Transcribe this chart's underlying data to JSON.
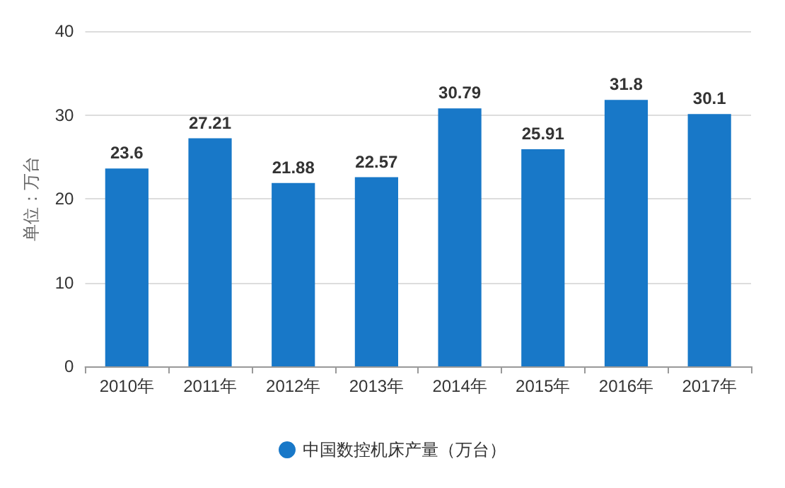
{
  "chart_data": {
    "type": "bar",
    "ylabel": "单位：万台",
    "categories": [
      "2010年",
      "2011年",
      "2012年",
      "2013年",
      "2014年",
      "2015年",
      "2016年",
      "2017年"
    ],
    "series": [
      {
        "name": "中国数控机床产量（万台）",
        "color": "#1878c8",
        "values": [
          23.6,
          27.21,
          21.88,
          22.57,
          30.79,
          25.91,
          31.8,
          30.1
        ]
      }
    ],
    "ylim": [
      0,
      40
    ],
    "yticks": [
      0,
      10,
      20,
      30,
      40
    ],
    "grid": "y",
    "legend": "bottom",
    "data_labels": true
  }
}
